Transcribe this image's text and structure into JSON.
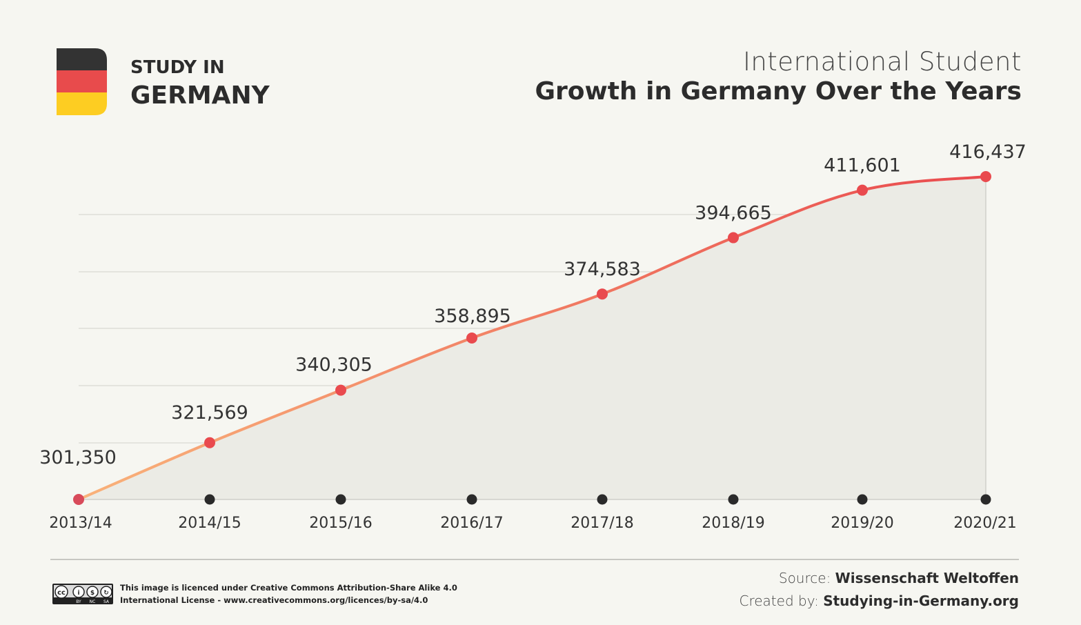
{
  "brand": {
    "line1": "STUDY IN",
    "line2": "GERMANY"
  },
  "title": {
    "line1": "International Student",
    "line2": "Growth in Germany Over the Years"
  },
  "chart_data": {
    "type": "line",
    "categories": [
      "2013/14",
      "2014/15",
      "2015/16",
      "2016/17",
      "2017/18",
      "2018/19",
      "2019/20",
      "2020/21"
    ],
    "values": [
      301350,
      321569,
      340305,
      358895,
      374583,
      394665,
      411601,
      416437
    ],
    "value_labels": [
      "301,350",
      "321,569",
      "340,305",
      "358,895",
      "374,583",
      "394,665",
      "411,601",
      "416,437"
    ],
    "title": "International Student Growth in Germany Over the Years",
    "xlabel": "",
    "ylabel": "",
    "grid": true,
    "area_fill": true,
    "colors": {
      "start": "#f9b27a",
      "end": "#e94a4e",
      "fill": "#ebebe5",
      "grid": "#d9d9d4",
      "x_dot": "#2a2a2a"
    }
  },
  "footer": {
    "license_line1": "This image is licenced under Creative Commons Attribution-Share Alike 4.0",
    "license_line2": "International License - www.creativecommons.org/licences/by-sa/4.0",
    "source_prefix": "Source: ",
    "source_value": "Wissenschaft Weltoffen",
    "created_prefix": "Created by: ",
    "created_value": "Studying-in-Germany.org",
    "cc_badge": [
      "BY",
      "NC",
      "SA"
    ]
  }
}
